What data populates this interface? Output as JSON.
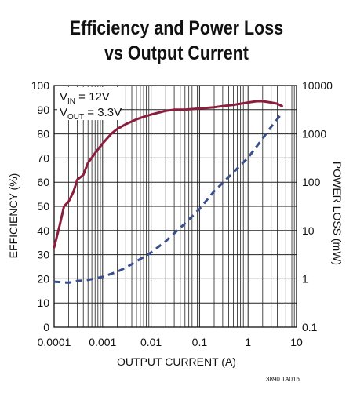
{
  "header": {
    "title_line1": "Efficiency and Power Loss",
    "title_line2": "vs Output Current"
  },
  "footnote": "3890 TA01b",
  "annotations": {
    "vin_main": "V",
    "vin_sub": "IN",
    "vin_value": " = 12V",
    "vout_main": "V",
    "vout_sub": "OUT",
    "vout_value": " = 3.3V"
  },
  "chart_data": {
    "type": "line",
    "title": "Efficiency and Power Loss vs Output Current",
    "xlabel": "OUTPUT CURRENT (A)",
    "ylabel_left": "EFFICIENCY (%)",
    "ylabel_right": "POWER LOSS (mW)",
    "x_scale": "log",
    "xlim": [
      0.0001,
      10
    ],
    "x_ticks": [
      "0.0001",
      "0.001",
      "0.01",
      "0.1",
      "1",
      "10"
    ],
    "y_left_lim": [
      0,
      100
    ],
    "y_left_ticks": [
      "0",
      "10",
      "20",
      "30",
      "40",
      "50",
      "60",
      "70",
      "80",
      "90",
      "100"
    ],
    "y_right_scale": "log",
    "y_right_lim": [
      0.1,
      10000
    ],
    "y_right_ticks": [
      "0.1",
      "1",
      "10",
      "100",
      "1000",
      "10000"
    ],
    "grid": true,
    "colors": {
      "efficiency": "#8b1d3d",
      "power_loss": "#3a4f8f"
    },
    "series": [
      {
        "axis": "left",
        "style": "solid",
        "x": [
          0.0001,
          0.00013,
          0.00016,
          0.0002,
          0.00025,
          0.0003,
          0.0004,
          0.0005,
          0.0007,
          0.001,
          0.0015,
          0.002,
          0.003,
          0.005,
          0.007,
          0.01,
          0.02,
          0.03,
          0.05,
          0.1,
          0.2,
          0.3,
          0.5,
          1,
          1.5,
          2,
          3,
          4,
          5
        ],
        "values": [
          33,
          42,
          50,
          52,
          56,
          61,
          63,
          68,
          72,
          76,
          80,
          82,
          84,
          86,
          87,
          88,
          89.5,
          90,
          90,
          90.5,
          91,
          91.5,
          92,
          93,
          93.5,
          93.5,
          93,
          92.5,
          91.5
        ]
      },
      {
        "axis": "right",
        "style": "dashed",
        "x": [
          0.0001,
          0.0002,
          0.0003,
          0.0005,
          0.001,
          0.002,
          0.003,
          0.005,
          0.01,
          0.02,
          0.05,
          0.1,
          0.2,
          0.5,
          1,
          2,
          3,
          4,
          5
        ],
        "values": [
          0.87,
          0.83,
          0.9,
          0.95,
          1.1,
          1.4,
          1.7,
          2.3,
          3.5,
          6,
          14,
          28,
          65,
          160,
          320,
          800,
          1400,
          2000,
          2700
        ]
      }
    ]
  }
}
